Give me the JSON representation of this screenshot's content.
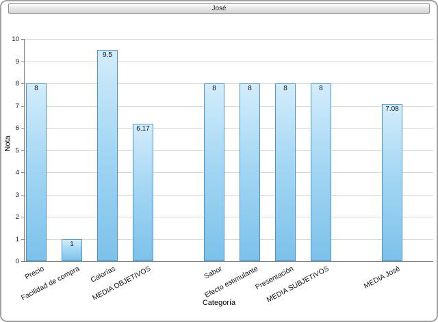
{
  "window": {
    "title": "José"
  },
  "chart_data": {
    "type": "bar",
    "title": "José",
    "categories": [
      "Precio",
      "Facilidad de compra",
      "Calorías",
      "MEDIA OBJETIVOS",
      "Sabor",
      "Efecto estimulante",
      "Presentación",
      "MEDIA SUBJETIVOS",
      "MEDIA José"
    ],
    "values": [
      8,
      1,
      9.5,
      6.17,
      8,
      8,
      8,
      8,
      7.08
    ],
    "labels": [
      "8",
      "1",
      "9.5",
      "6.17",
      "8",
      "8",
      "8",
      "8",
      "7.08"
    ],
    "slots": [
      0,
      1,
      2,
      3,
      5,
      6,
      7,
      8,
      10
    ],
    "xlabel": "Categoría",
    "ylabel": "Nota",
    "ylim": [
      0,
      10
    ],
    "yticks": [
      0,
      1,
      2,
      3,
      4,
      5,
      6,
      7,
      8,
      9,
      10
    ],
    "grid": "horizontal",
    "legend": "none",
    "bar_fill_top": "#d3ecfb",
    "bar_fill_bottom": "#7cc1ea",
    "bar_border": "#4f94c9",
    "gridline_color": "#d4d4d4"
  }
}
